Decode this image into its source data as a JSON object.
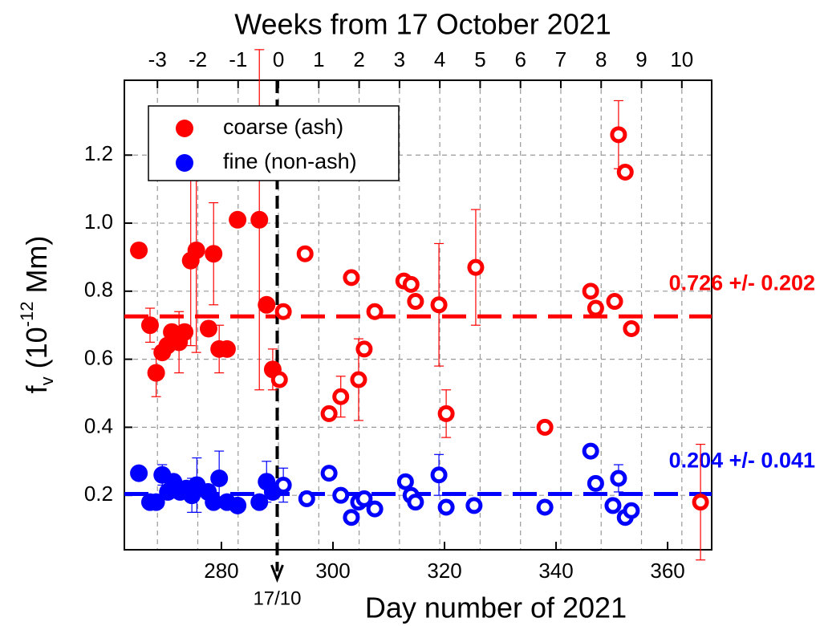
{
  "chart_data": {
    "type": "scatter",
    "title": "Weeks from 17 October 2021",
    "xlabel": "Day number of 2021",
    "ylabel_parts": [
      "f",
      "v",
      " (10",
      "-12",
      " Mm)"
    ],
    "ylabel_styles": [
      "normal",
      "sub",
      "normal",
      "super",
      "normal"
    ],
    "xlim": [
      262.6,
      367.9
    ],
    "xticks": [
      280,
      300,
      320,
      340,
      360
    ],
    "x2lim": [
      -3.82,
      10.74
    ],
    "x2ticks": [
      -3,
      -2,
      -1,
      0,
      1,
      2,
      3,
      4,
      5,
      6,
      7,
      8,
      9,
      10
    ],
    "ylim": [
      0.04,
      1.42
    ],
    "yticks": [
      {
        "value": 0.2,
        "label": "0.2"
      },
      {
        "value": 0.4,
        "label": "0.4"
      },
      {
        "value": 0.6,
        "label": "0.6"
      },
      {
        "value": 0.8,
        "label": "0.8"
      },
      {
        "value": 1,
        "label": "1.0"
      },
      {
        "value": 1.2,
        "label": "1.2"
      }
    ],
    "grid": true,
    "legend": "upper left",
    "marker_line": {
      "x": 290,
      "label": "17/10"
    },
    "series": [
      {
        "name": "coarse (ash)",
        "color": "#ff0000",
        "x": [
          265.2,
          267.2,
          268.3,
          269.4,
          270.3,
          271.1,
          272.4,
          273.4,
          274.5,
          275.5,
          277.7,
          278.6,
          279.6,
          281.0,
          282.9,
          286.8,
          288.1,
          289.2,
          290.4,
          291.1,
          295.0,
          299.3,
          301.4,
          303.3,
          304.6,
          305.6,
          307.5,
          312.7,
          314.0,
          314.8,
          319.0,
          320.3,
          325.6,
          338.0,
          346.2,
          347.1,
          350.5,
          351.2,
          352.4,
          353.5,
          365.9
        ],
        "values": [
          0.92,
          0.7,
          0.56,
          0.62,
          0.64,
          0.68,
          0.65,
          0.68,
          0.89,
          0.92,
          0.69,
          0.91,
          0.63,
          0.63,
          1.01,
          1.01,
          0.76,
          0.57,
          0.54,
          0.74,
          0.91,
          0.44,
          0.49,
          0.84,
          0.54,
          0.63,
          0.74,
          0.83,
          0.82,
          0.77,
          0.76,
          0.44,
          0.87,
          0.4,
          0.8,
          0.75,
          0.77,
          1.26,
          1.15,
          0.69,
          0.18
        ],
        "errors": [
          null,
          0.05,
          0.07,
          null,
          null,
          null,
          0.09,
          null,
          0.25,
          0.3,
          null,
          0.15,
          0.07,
          null,
          null,
          0.5,
          null,
          0.06,
          null,
          null,
          null,
          null,
          0.06,
          null,
          0.12,
          null,
          null,
          null,
          null,
          null,
          0.18,
          0.07,
          0.17,
          null,
          null,
          null,
          null,
          0.1,
          null,
          null,
          0.17
        ]
      },
      {
        "name": "fine (non-ash)",
        "color": "#0000ff",
        "x": [
          265.2,
          267.2,
          268.3,
          269.4,
          270.4,
          271.4,
          272.6,
          273.7,
          274.7,
          275.6,
          277.6,
          278.6,
          279.6,
          281.0,
          282.9,
          286.8,
          288.1,
          289.2,
          291.1,
          295.3,
          299.3,
          301.4,
          303.3,
          304.6,
          305.6,
          307.5,
          313.0,
          314.0,
          314.8,
          319.0,
          320.3,
          325.3,
          338.0,
          346.2,
          347.1,
          350.2,
          351.2,
          352.4,
          353.5
        ],
        "values": [
          0.265,
          0.18,
          0.18,
          0.26,
          0.21,
          0.24,
          0.21,
          0.22,
          0.2,
          0.23,
          0.21,
          0.18,
          0.25,
          0.18,
          0.17,
          0.18,
          0.24,
          0.21,
          0.23,
          0.19,
          0.265,
          0.2,
          0.135,
          0.18,
          0.19,
          0.16,
          0.24,
          0.2,
          0.18,
          0.26,
          0.165,
          0.17,
          0.165,
          0.33,
          0.235,
          0.17,
          0.25,
          0.135,
          0.155
        ],
        "errors": [
          null,
          null,
          null,
          0.03,
          null,
          null,
          null,
          null,
          0.05,
          0.08,
          null,
          null,
          0.08,
          null,
          null,
          null,
          0.06,
          null,
          0.05,
          null,
          null,
          null,
          null,
          null,
          null,
          null,
          null,
          null,
          null,
          0.06,
          null,
          null,
          null,
          null,
          null,
          null,
          0.04,
          null,
          null
        ]
      }
    ],
    "reference_lines": [
      {
        "value": 0.726,
        "label": "0.726 +/- 0.202",
        "color": "#ff0000"
      },
      {
        "value": 0.204,
        "label": "0.204 +/- 0.041",
        "color": "#0000ff"
      }
    ]
  }
}
